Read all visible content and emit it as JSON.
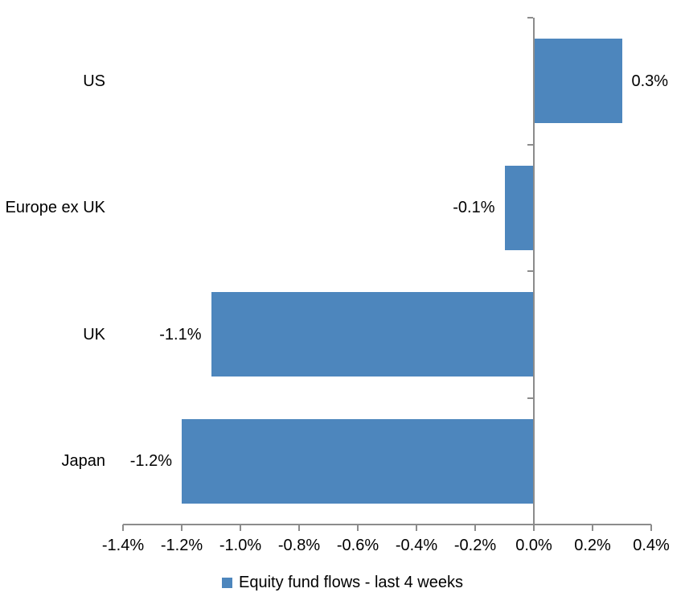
{
  "chart_data": {
    "type": "bar",
    "orientation": "horizontal",
    "title": "",
    "categories": [
      "US",
      "Europe ex UK",
      "UK",
      "Japan"
    ],
    "values": [
      0.3,
      -0.1,
      -1.1,
      -1.2
    ],
    "data_labels": [
      "0.3%",
      "-0.1%",
      "-1.1%",
      "-1.2%"
    ],
    "series_name": "Equity fund flows - last 4 weeks",
    "x_ticks": [
      "-1.4%",
      "-1.2%",
      "-1.0%",
      "-0.8%",
      "-0.6%",
      "-0.4%",
      "-0.2%",
      "0.0%",
      "0.2%",
      "0.4%"
    ],
    "x_tick_values": [
      -1.4,
      -1.2,
      -1.0,
      -0.8,
      -0.6,
      -0.4,
      -0.2,
      0.0,
      0.2,
      0.4
    ],
    "xlim": [
      -1.4,
      0.4
    ],
    "grid": false,
    "legend_position": "bottom",
    "colors": {
      "bar": "#4D86BD",
      "axis": "#8C8C8C",
      "text": "#000000",
      "background": "#FFFFFF"
    }
  }
}
